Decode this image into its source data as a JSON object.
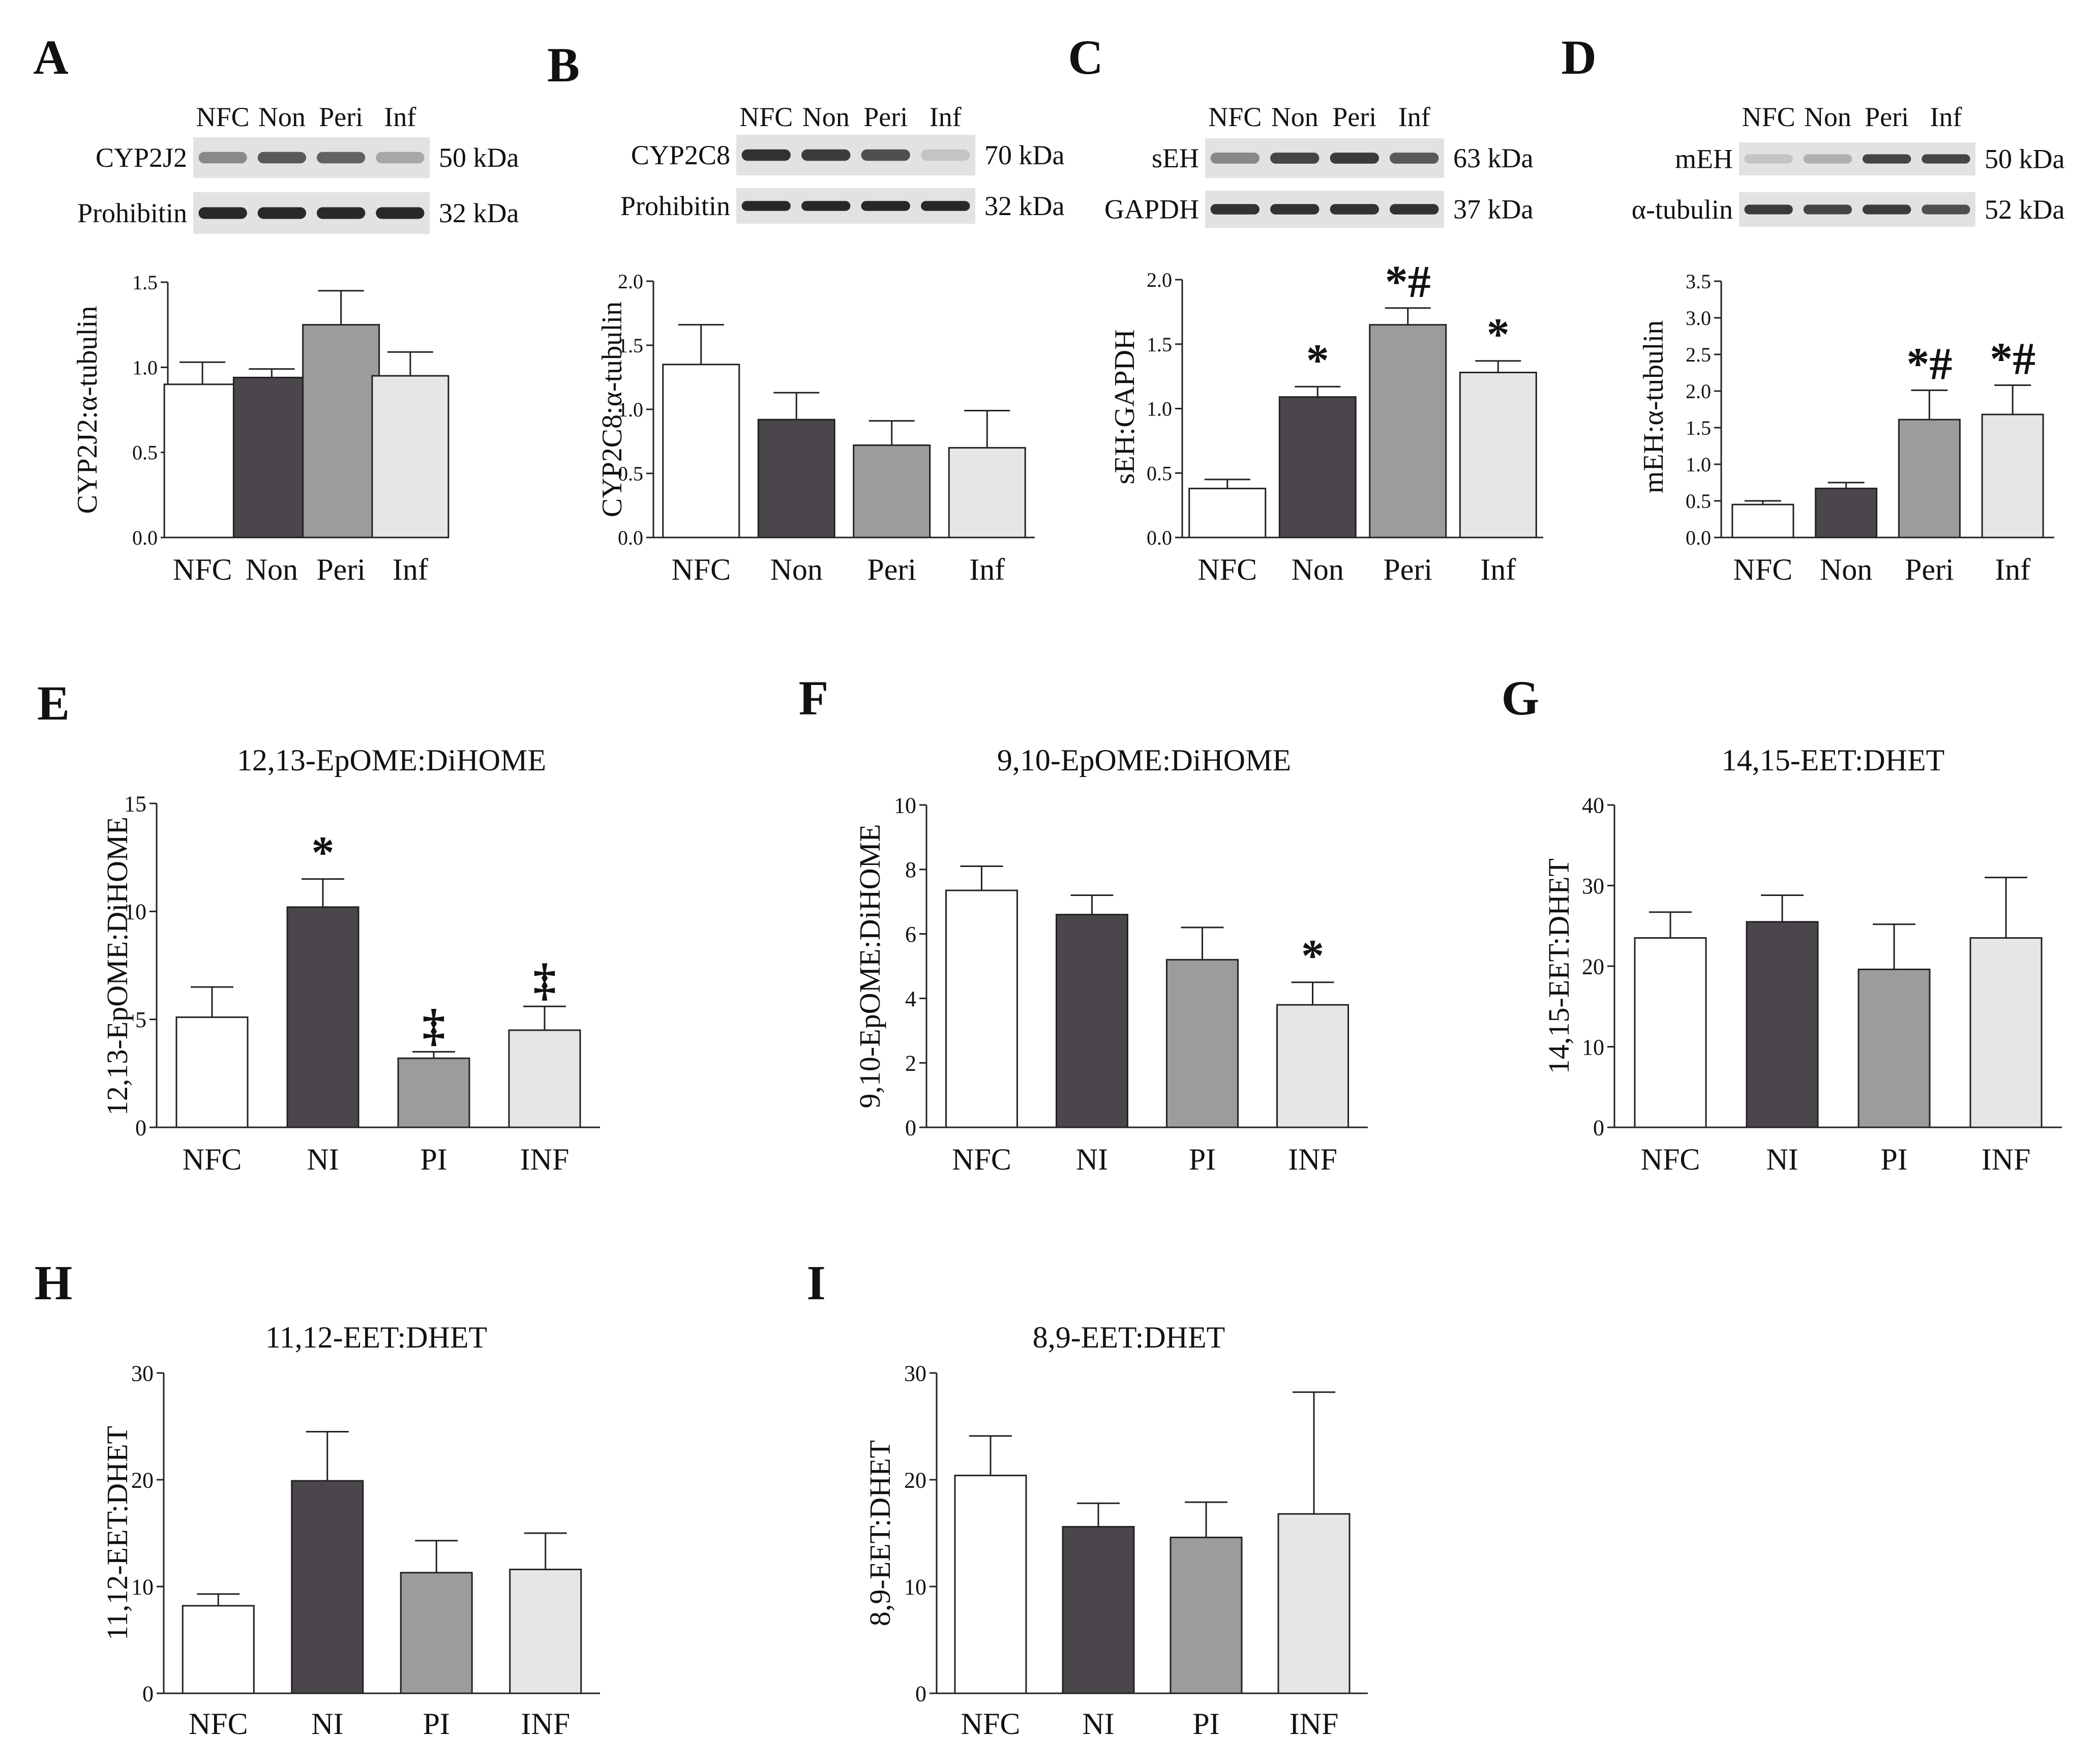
{
  "colors": {
    "NFC": "#ffffff",
    "Non": "#4a464b",
    "Peri": "#9c9c9c",
    "Inf": "#e6e6e6",
    "axis": "#222222",
    "blot_bg": "#e2e2e2",
    "band": "#252525"
  },
  "chart_data": [
    {
      "panel": "A",
      "type": "bar",
      "title": "",
      "categories": [
        "NFC",
        "Non",
        "Peri",
        "Inf"
      ],
      "values": [
        0.9,
        0.94,
        1.25,
        0.95
      ],
      "errors": [
        0.13,
        0.05,
        0.2,
        0.14
      ],
      "ylabel": "CYP2J2:α-tubulin",
      "ylim": [
        0,
        1.5
      ],
      "yticks": [
        "0.0",
        "0.5",
        "1.0",
        "1.5"
      ],
      "markers": [
        "",
        "",
        "",
        ""
      ],
      "blot": {
        "lanes": [
          "NFC",
          "Non",
          "Peri",
          "Inf"
        ],
        "rows": [
          {
            "label": "CYP2J2",
            "kda": "50 kDa",
            "intensity": [
              0.45,
              0.7,
              0.65,
              0.3
            ]
          },
          {
            "label": "Prohibitin",
            "kda": "32 kDa",
            "intensity": [
              0.95,
              0.95,
              0.95,
              0.95
            ]
          }
        ]
      }
    },
    {
      "panel": "B",
      "type": "bar",
      "title": "",
      "categories": [
        "NFC",
        "Non",
        "Peri",
        "Inf"
      ],
      "values": [
        1.35,
        0.92,
        0.72,
        0.7
      ],
      "errors": [
        0.31,
        0.21,
        0.19,
        0.29
      ],
      "ylabel": "CYP2C8:α-tubulin",
      "ylim": [
        0,
        2.0
      ],
      "yticks": [
        "0.0",
        "0.5",
        "1.0",
        "1.5",
        "2.0"
      ],
      "markers": [
        "",
        "",
        "",
        ""
      ],
      "blot": {
        "lanes": [
          "NFC",
          "Non",
          "Peri",
          "Inf"
        ],
        "rows": [
          {
            "label": "CYP2C8",
            "kda": "70 kDa",
            "intensity": [
              0.9,
              0.85,
              0.75,
              0.15
            ]
          },
          {
            "label": "Prohibitin",
            "kda": "32 kDa",
            "intensity": [
              0.95,
              0.95,
              0.95,
              0.95
            ]
          }
        ]
      }
    },
    {
      "panel": "C",
      "type": "bar",
      "title": "",
      "categories": [
        "NFC",
        "Non",
        "Peri",
        "Inf"
      ],
      "values": [
        0.38,
        1.09,
        1.65,
        1.28
      ],
      "errors": [
        0.07,
        0.08,
        0.13,
        0.09
      ],
      "ylabel": "sEH:GAPDH",
      "ylim": [
        0,
        2.0
      ],
      "yticks": [
        "0.0",
        "0.5",
        "1.0",
        "1.5",
        "2.0"
      ],
      "markers": [
        "",
        "*",
        "*#",
        "*"
      ],
      "blot": {
        "lanes": [
          "NFC",
          "Non",
          "Peri",
          "Inf"
        ],
        "rows": [
          {
            "label": "sEH",
            "kda": "63 kDa",
            "intensity": [
              0.45,
              0.8,
              0.85,
              0.7
            ]
          },
          {
            "label": "GAPDH",
            "kda": "37 kDa",
            "intensity": [
              0.9,
              0.9,
              0.9,
              0.9
            ]
          }
        ]
      }
    },
    {
      "panel": "D",
      "type": "bar",
      "title": "",
      "categories": [
        "NFC",
        "Non",
        "Peri",
        "Inf"
      ],
      "values": [
        0.45,
        0.67,
        1.61,
        1.68
      ],
      "errors": [
        0.05,
        0.08,
        0.4,
        0.4
      ],
      "ylabel": "mEH:α-tubulin",
      "ylim": [
        0,
        3.5
      ],
      "yticks": [
        "0.0",
        "0.5",
        "1.0",
        "1.5",
        "2.0",
        "2.5",
        "3.0",
        "3.5"
      ],
      "markers": [
        "",
        "",
        "*#",
        "*#"
      ],
      "blot": {
        "lanes": [
          "NFC",
          "Non",
          "Peri",
          "Inf"
        ],
        "rows": [
          {
            "label": "mEH",
            "kda": "50 kDa",
            "intensity": [
              0.15,
              0.25,
              0.8,
              0.8
            ]
          },
          {
            "label": "α-tubulin",
            "kda": "52 kDa",
            "intensity": [
              0.85,
              0.8,
              0.85,
              0.75
            ]
          }
        ]
      }
    },
    {
      "panel": "E",
      "type": "bar",
      "title": "12,13-EpOME:DiHOME",
      "categories": [
        "NFC",
        "NI",
        "PI",
        "INF"
      ],
      "values": [
        5.1,
        10.2,
        3.2,
        4.5
      ],
      "errors": [
        1.4,
        1.3,
        0.3,
        1.1
      ],
      "ylabel": "12,13-EpOME:DiHOME",
      "ylim": [
        0,
        15
      ],
      "yticks": [
        "0",
        "5",
        "10",
        "15"
      ],
      "markers": [
        "",
        "*",
        "‡",
        "‡"
      ]
    },
    {
      "panel": "F",
      "type": "bar",
      "title": "9,10-EpOME:DiHOME",
      "categories": [
        "NFC",
        "NI",
        "PI",
        "INF"
      ],
      "values": [
        7.35,
        6.6,
        5.2,
        3.8
      ],
      "errors": [
        0.75,
        0.6,
        1.0,
        0.7
      ],
      "ylabel": "9,10-EpOME:DiHOME",
      "ylim": [
        0,
        10
      ],
      "yticks": [
        "0",
        "2",
        "4",
        "6",
        "8",
        "10"
      ],
      "markers": [
        "",
        "",
        "",
        "*"
      ]
    },
    {
      "panel": "G",
      "type": "bar",
      "title": "14,15-EET:DHET",
      "categories": [
        "NFC",
        "NI",
        "PI",
        "INF"
      ],
      "values": [
        23.5,
        25.5,
        19.6,
        23.5
      ],
      "errors": [
        3.2,
        3.3,
        5.6,
        7.5
      ],
      "ylabel": "14,15-EET:DHET",
      "ylim": [
        0,
        40
      ],
      "yticks": [
        "0",
        "10",
        "20",
        "30",
        "40"
      ],
      "markers": [
        "",
        "",
        "",
        ""
      ]
    },
    {
      "panel": "H",
      "type": "bar",
      "title": "11,12-EET:DHET",
      "categories": [
        "NFC",
        "NI",
        "PI",
        "INF"
      ],
      "values": [
        8.2,
        19.9,
        11.3,
        11.6
      ],
      "errors": [
        1.1,
        4.6,
        3.0,
        3.4
      ],
      "ylabel": "11,12-EET:DHET",
      "ylim": [
        0,
        30
      ],
      "yticks": [
        "0",
        "10",
        "20",
        "30"
      ],
      "markers": [
        "",
        "",
        "",
        ""
      ]
    },
    {
      "panel": "I",
      "type": "bar",
      "title": "8,9-EET:DHET",
      "categories": [
        "NFC",
        "NI",
        "PI",
        "INF"
      ],
      "values": [
        20.4,
        15.6,
        14.6,
        16.8
      ],
      "errors": [
        3.7,
        2.2,
        3.3,
        11.4
      ],
      "ylabel": "8,9-EET:DHET",
      "ylim": [
        0,
        30
      ],
      "yticks": [
        "0",
        "10",
        "20",
        "30"
      ],
      "markers": [
        "",
        "",
        "",
        ""
      ]
    }
  ]
}
